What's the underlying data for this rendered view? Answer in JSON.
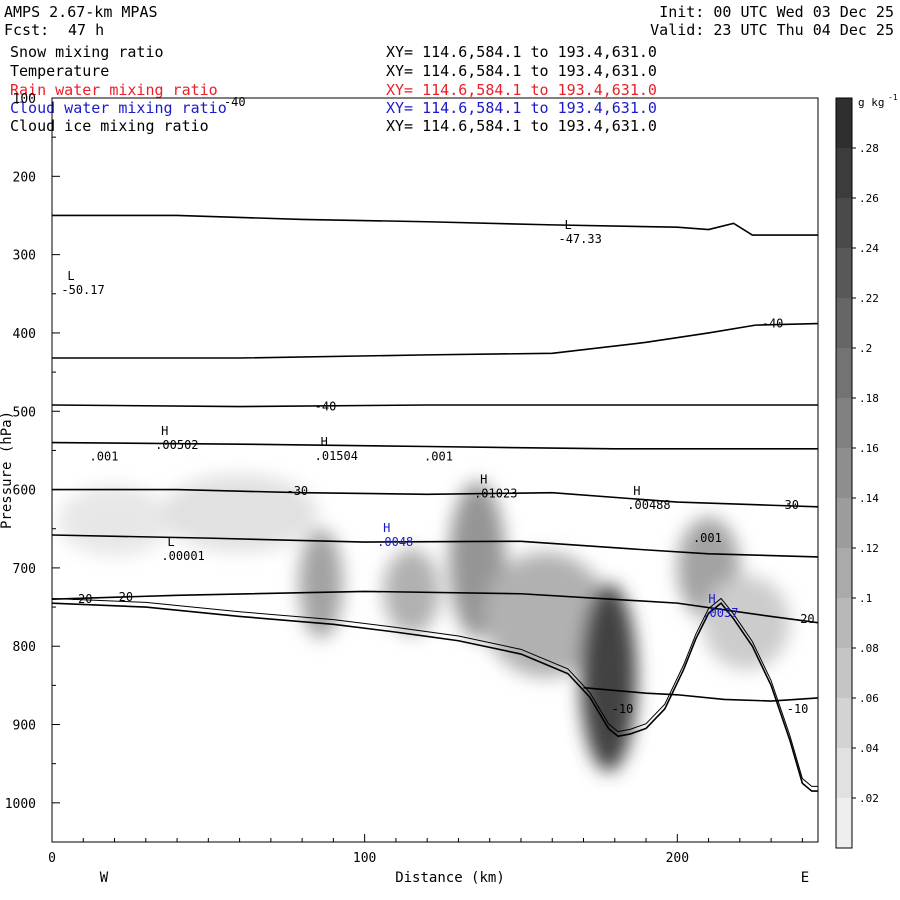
{
  "header": {
    "model": "AMPS 2.67-km MPAS",
    "fcst_label": "Fcst:",
    "fcst_value": "47 h",
    "init": "Init: 00 UTC Wed 03 Dec 25",
    "valid": "Valid: 23 UTC Thu 04 Dec 25"
  },
  "fields": [
    {
      "name": "Snow mixing ratio",
      "xy": "XY= 114.6,584.1 to 193.4,631.0",
      "color": "#000000"
    },
    {
      "name": "Temperature",
      "xy": "XY= 114.6,584.1 to 193.4,631.0",
      "color": "#000000"
    },
    {
      "name": "Rain water mixing ratio",
      "xy": "XY= 114.6,584.1 to 193.4,631.0",
      "color": "#e8202a"
    },
    {
      "name": "Cloud water mixing ratio",
      "xy": "XY= 114.6,584.1 to 193.4,631.0",
      "color": "#1a1acc"
    },
    {
      "name": "Cloud ice mixing ratio",
      "xy": "XY= 114.6,584.1 to 193.4,631.0",
      "color": "#000000"
    }
  ],
  "chart_data": {
    "type": "heatmap",
    "xlabel": "Distance (km)",
    "ylabel": "Pressure (hPa)",
    "xlim": [
      0,
      245
    ],
    "ylim": [
      1050,
      100
    ],
    "x_ticks": [
      0,
      100,
      200
    ],
    "y_ticks": [
      200,
      300,
      400,
      500,
      600,
      700,
      800,
      900,
      1000
    ],
    "y_ticks_top_partial": "100",
    "direction_left": "W",
    "direction_right": "E",
    "colorbar": {
      "unit": "g kg",
      "unit_exp": "-1",
      "min": 0,
      "max": 0.3,
      "tick_labels": [
        ".02",
        ".04",
        ".06",
        ".08",
        ".1",
        ".12",
        ".14",
        ".16",
        ".18",
        ".2",
        ".22",
        ".24",
        ".26",
        ".28"
      ],
      "tick_values": [
        0.02,
        0.04,
        0.06,
        0.08,
        0.1,
        0.12,
        0.14,
        0.16,
        0.18,
        0.2,
        0.22,
        0.24,
        0.26,
        0.28
      ]
    },
    "terrain_surface": [
      [
        0,
        745
      ],
      [
        30,
        750
      ],
      [
        60,
        762
      ],
      [
        90,
        772
      ],
      [
        110,
        782
      ],
      [
        130,
        793
      ],
      [
        150,
        810
      ],
      [
        165,
        835
      ],
      [
        172,
        865
      ],
      [
        178,
        905
      ],
      [
        181,
        915
      ],
      [
        185,
        912
      ],
      [
        190,
        905
      ],
      [
        196,
        880
      ],
      [
        202,
        830
      ],
      [
        206,
        790
      ],
      [
        210,
        758
      ],
      [
        214,
        745
      ],
      [
        218,
        765
      ],
      [
        224,
        800
      ],
      [
        230,
        850
      ],
      [
        236,
        920
      ],
      [
        240,
        975
      ],
      [
        243,
        985
      ],
      [
        245,
        985
      ]
    ],
    "temperature_isotherms": [
      {
        "label": "-40",
        "points": [
          [
            0,
            250
          ],
          [
            40,
            250
          ],
          [
            80,
            255
          ],
          [
            120,
            258
          ],
          [
            160,
            262
          ],
          [
            200,
            265
          ],
          [
            210,
            268
          ],
          [
            218,
            260
          ],
          [
            224,
            275
          ],
          [
            245,
            275
          ]
        ]
      },
      {
        "label": "-40",
        "points": [
          [
            0,
            432
          ],
          [
            60,
            432
          ],
          [
            120,
            428
          ],
          [
            160,
            426
          ],
          [
            190,
            412
          ],
          [
            210,
            400
          ],
          [
            225,
            390
          ],
          [
            245,
            388
          ]
        ]
      },
      {
        "label": "-40",
        "points": [
          [
            0,
            492
          ],
          [
            60,
            494
          ],
          [
            120,
            492
          ],
          [
            170,
            492
          ],
          [
            210,
            492
          ],
          [
            245,
            492
          ]
        ]
      },
      {
        "label": "",
        "points": [
          [
            0,
            540
          ],
          [
            60,
            542
          ],
          [
            120,
            545
          ],
          [
            180,
            548
          ],
          [
            245,
            548
          ]
        ]
      },
      {
        "label": "-30",
        "points": [
          [
            0,
            600
          ],
          [
            40,
            600
          ],
          [
            80,
            604
          ],
          [
            120,
            606
          ],
          [
            160,
            604
          ],
          [
            200,
            616
          ],
          [
            230,
            620
          ],
          [
            245,
            622
          ]
        ]
      },
      {
        "label": "",
        "points": [
          [
            0,
            658
          ],
          [
            50,
            662
          ],
          [
            100,
            667
          ],
          [
            150,
            666
          ],
          [
            190,
            677
          ],
          [
            210,
            682
          ],
          [
            245,
            686
          ]
        ]
      },
      {
        "label": "-20",
        "points": [
          [
            0,
            740
          ],
          [
            40,
            735
          ],
          [
            100,
            730
          ],
          [
            150,
            733
          ],
          [
            200,
            745
          ],
          [
            230,
            762
          ],
          [
            245,
            770
          ]
        ]
      },
      {
        "label": "-10",
        "points": [
          [
            170,
            853
          ],
          [
            190,
            860
          ],
          [
            200,
            862
          ],
          [
            215,
            868
          ],
          [
            230,
            870
          ],
          [
            245,
            866
          ]
        ]
      }
    ],
    "extrema_labels": [
      {
        "type": "L",
        "value": "-50.17",
        "x": 3,
        "p": 350
      },
      {
        "type": "L",
        "value": "-47.33",
        "x": 162,
        "p": 285
      },
      {
        "type": "L",
        "value": ".00001",
        "x": 35,
        "p": 690
      },
      {
        "type": "H",
        "value": ".00502",
        "x": 33,
        "p": 548
      },
      {
        "type": "H",
        "value": ".01504",
        "x": 84,
        "p": 562
      },
      {
        "type": "H",
        "value": ".01023",
        "x": 135,
        "p": 610
      },
      {
        "type": "H",
        "value": ".00488",
        "x": 184,
        "p": 625
      },
      {
        "type": "H",
        "value": ".0048",
        "x": 104,
        "p": 672
      },
      {
        "type": "H",
        "value": ".0037",
        "x": 208,
        "p": 763
      }
    ],
    "contour_labels": [
      {
        "text": "-40",
        "x": 55,
        "p": 105
      },
      {
        "text": "-40",
        "x": 227,
        "p": 388
      },
      {
        "text": "-40",
        "x": 84,
        "p": 494
      },
      {
        "text": "-30",
        "x": 75,
        "p": 602
      },
      {
        "text": "-30",
        "x": 232,
        "p": 620
      },
      {
        "text": "-20",
        "x": 6,
        "p": 740
      },
      {
        "text": "-20",
        "x": 19,
        "p": 737
      },
      {
        "text": "-20",
        "x": 237,
        "p": 765
      },
      {
        "text": "-10",
        "x": 179,
        "p": 880
      },
      {
        "text": "-10",
        "x": 235,
        "p": 880
      },
      {
        "text": ".001",
        "x": 12,
        "p": 558
      },
      {
        "text": ".001",
        "x": 119,
        "p": 558
      },
      {
        "text": ".001",
        "x": 205,
        "p": 662
      }
    ],
    "snow_blobs": [
      {
        "x": 20,
        "p": 640,
        "rx": 18,
        "rp": 45,
        "value": 0.02
      },
      {
        "x": 60,
        "p": 630,
        "rx": 25,
        "rp": 50,
        "value": 0.03
      },
      {
        "x": 86,
        "p": 720,
        "rx": 7,
        "rp": 70,
        "value": 0.12
      },
      {
        "x": 115,
        "p": 730,
        "rx": 9,
        "rp": 55,
        "value": 0.1
      },
      {
        "x": 136,
        "p": 690,
        "rx": 9,
        "rp": 100,
        "value": 0.14
      },
      {
        "x": 158,
        "p": 760,
        "rx": 20,
        "rp": 80,
        "value": 0.1
      },
      {
        "x": 178,
        "p": 840,
        "rx": 9,
        "rp": 120,
        "value": 0.26
      },
      {
        "x": 210,
        "p": 700,
        "rx": 10,
        "rp": 65,
        "value": 0.12
      },
      {
        "x": 222,
        "p": 770,
        "rx": 14,
        "rp": 60,
        "value": 0.06
      }
    ]
  }
}
